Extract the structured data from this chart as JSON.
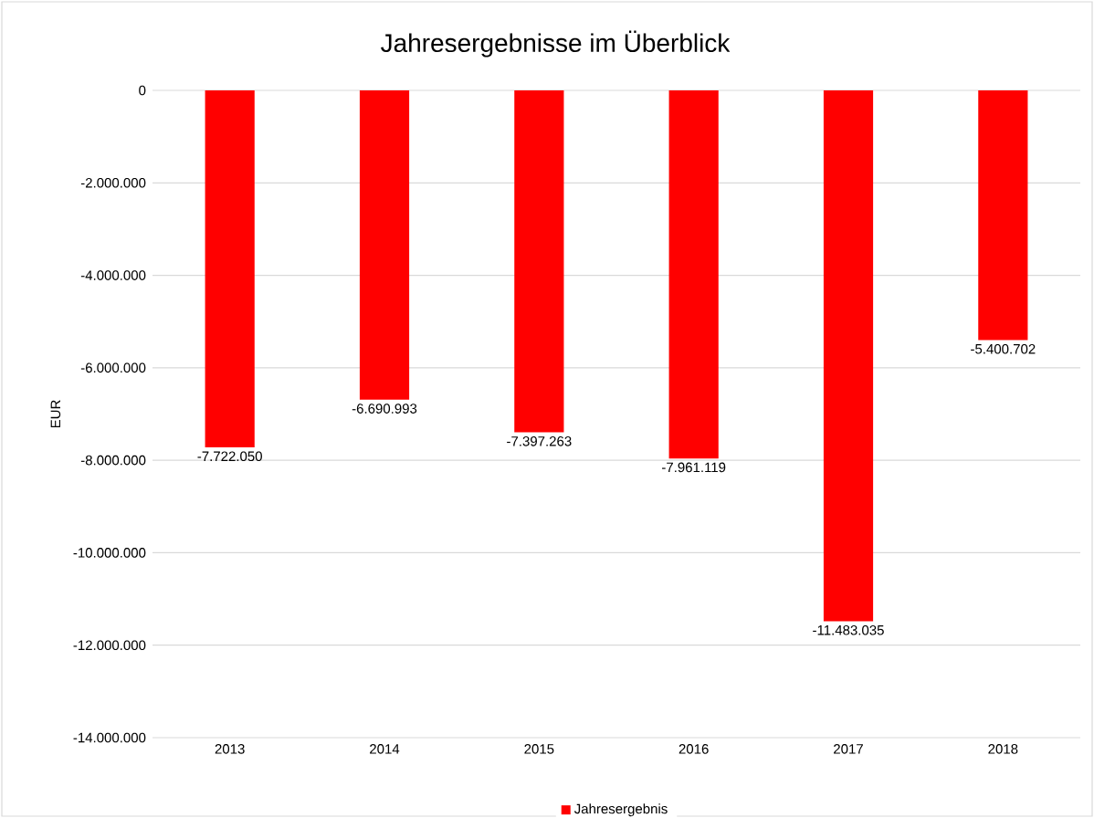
{
  "chart_data": {
    "type": "bar",
    "title": "Jahresergebnisse im Überblick",
    "ylabel": "EUR",
    "categories": [
      "2013",
      "2014",
      "2015",
      "2016",
      "2017",
      "2018"
    ],
    "series": [
      {
        "name": "Jahresergebnis",
        "color": "#ff0000",
        "values": [
          -7722050,
          -6690993,
          -7397263,
          -7961119,
          -11483035,
          -5400702
        ],
        "value_labels": [
          "-7.722.050",
          "-6.690.993",
          "-7.397.263",
          "-7.961.119",
          "-11.483.035",
          "-5.400.702"
        ]
      }
    ],
    "ylim": [
      -14000000,
      0
    ],
    "yticks": [
      {
        "value": -14000000,
        "label": "-14.000.000"
      },
      {
        "value": -12000000,
        "label": "-12.000.000"
      },
      {
        "value": -10000000,
        "label": "-10.000.000"
      },
      {
        "value": -8000000,
        "label": "-8.000.000"
      },
      {
        "value": -6000000,
        "label": "-6.000.000"
      },
      {
        "value": -4000000,
        "label": "-4.000.000"
      },
      {
        "value": -2000000,
        "label": "-2.000.000"
      },
      0
    ],
    "grid": "y",
    "legend": "bottom"
  }
}
